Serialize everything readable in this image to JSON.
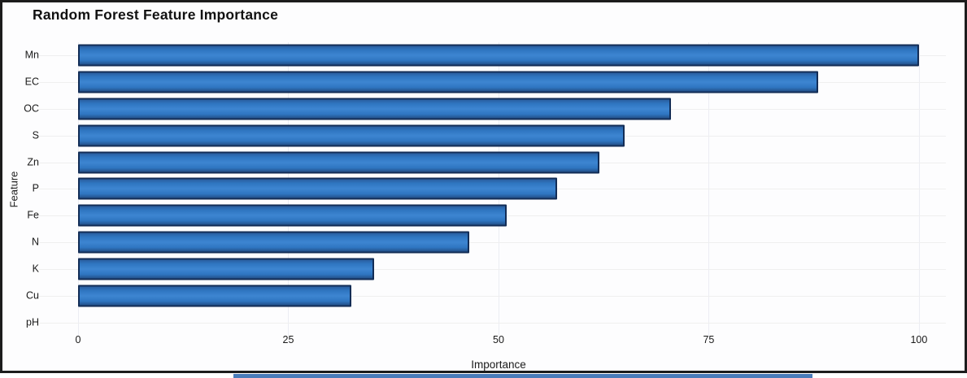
{
  "figure": {
    "border_color": "#1c1c1c",
    "background_color": "#ffffff",
    "bottom_strip_color": "#4a7cba"
  },
  "chart_data": {
    "type": "bar",
    "orientation": "horizontal",
    "title": "Random Forest Feature Importance",
    "xlabel": "Importance",
    "ylabel": "Feature",
    "categories": [
      "Mn",
      "EC",
      "OC",
      "S",
      "Zn",
      "P",
      "Fe",
      "N",
      "K",
      "Cu",
      "pH"
    ],
    "values": [
      100,
      88,
      70.5,
      65,
      62,
      57,
      51,
      46.5,
      35.2,
      32.5,
      0
    ],
    "xticks": [
      0,
      25,
      50,
      75,
      100
    ],
    "xlim": [
      0,
      103.2
    ],
    "grid": true,
    "legend": "none",
    "bar_color": "#2F76C1",
    "bar_border_color": "#132D56"
  }
}
